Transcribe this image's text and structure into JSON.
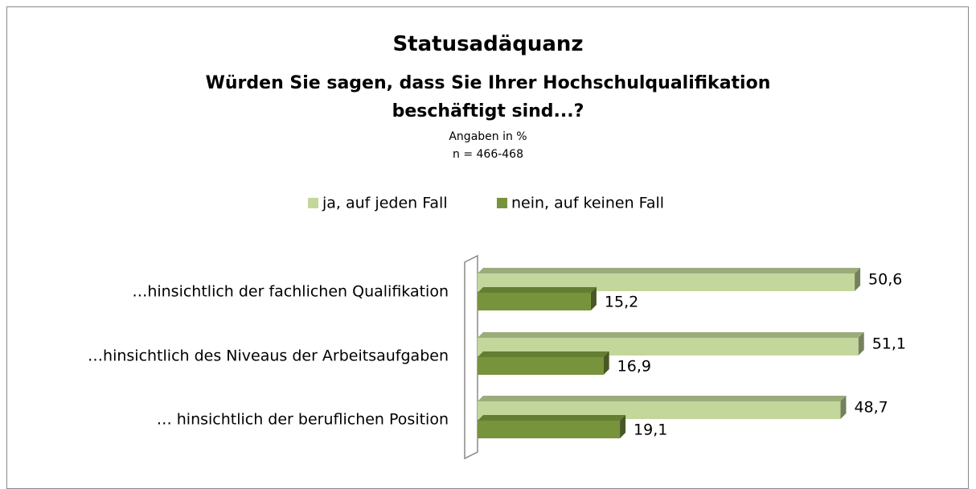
{
  "chart_data": {
    "type": "bar",
    "orientation": "horizontal",
    "title": "Statusadäquanz",
    "subtitle": "Würden Sie sagen, dass Sie Ihrer Hochschulqualifikation beschäftigt sind...?",
    "notes": [
      "Angaben in %",
      "n = 466-468"
    ],
    "categories": [
      "…hinsichtlich der fachlichen Qualifikation",
      "…hinsichtlich des Niveaus der Arbeitsaufgaben",
      "… hinsichtlich der beruflichen Position"
    ],
    "series": [
      {
        "name": "ja, auf jeden Fall",
        "color": "#c3d69b",
        "values": [
          50.6,
          51.1,
          48.7
        ],
        "value_labels": [
          "50,6",
          "51,1",
          "48,7"
        ]
      },
      {
        "name": "nein, auf keinen Fall",
        "color": "#77933c",
        "values": [
          15.2,
          16.9,
          19.1
        ],
        "value_labels": [
          "15,2",
          "16,9",
          "19,1"
        ]
      }
    ],
    "legend": "top"
  }
}
